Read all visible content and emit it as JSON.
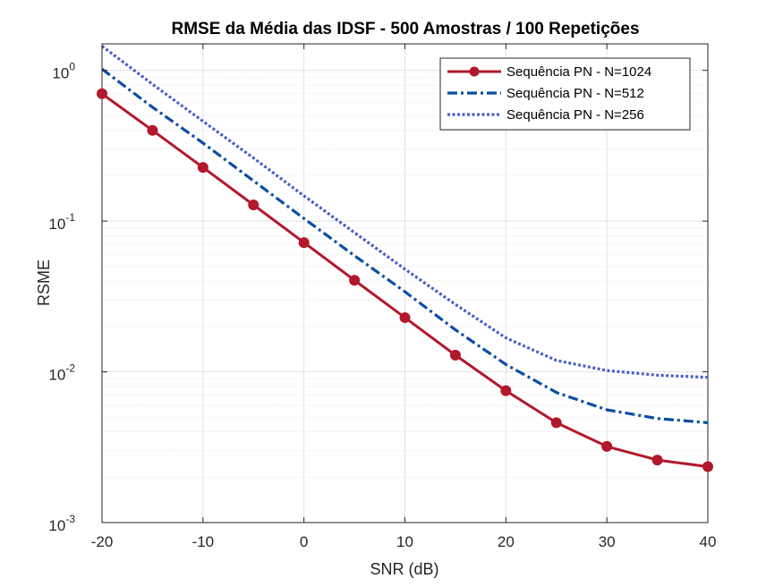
{
  "chart_data": {
    "type": "line",
    "title": "RMSE da Média das IDSF - 500 Amostras / 100 Repetições",
    "xlabel": "SNR (dB)",
    "ylabel": "RSME",
    "xlim": [
      -20,
      40
    ],
    "ylim": [
      0.001,
      1.5
    ],
    "yscale": "log",
    "grid": true,
    "minor_grid": true,
    "legend_placement": "top-right",
    "x_ticks": [
      -20,
      -10,
      0,
      10,
      20,
      30,
      40
    ],
    "x_tick_labels": [
      "-20",
      "-10",
      "0",
      "10",
      "20",
      "30",
      "40"
    ],
    "y_ticks": [
      {
        "value": 1,
        "base": "10",
        "exp": "0"
      },
      {
        "value": 0.1,
        "base": "10",
        "exp": "-1"
      },
      {
        "value": 0.01,
        "base": "10",
        "exp": "-2"
      },
      {
        "value": 0.001,
        "base": "10",
        "exp": "-3"
      }
    ],
    "x": [
      -20,
      -15,
      -10,
      -5,
      0,
      5,
      10,
      15,
      20,
      25,
      30,
      35,
      40
    ],
    "series": [
      {
        "name": "Sequência PN - N=1024",
        "color": "#b2182b",
        "style": "solid-marker",
        "values": [
          0.7,
          0.4,
          0.227,
          0.128,
          0.072,
          0.0405,
          0.0229,
          0.0129,
          0.0075,
          0.0046,
          0.0032,
          0.0026,
          0.00235
        ]
      },
      {
        "name": "Sequência PN - N=512",
        "color": "#0b4ea2",
        "style": "dashdot",
        "values": [
          1.02,
          0.57,
          0.33,
          0.185,
          0.104,
          0.059,
          0.034,
          0.019,
          0.0112,
          0.0073,
          0.0056,
          0.0049,
          0.0046
        ]
      },
      {
        "name": "Sequência PN - N=256",
        "color": "#4a5fc6",
        "style": "dotted",
        "values": [
          1.45,
          0.81,
          0.46,
          0.262,
          0.147,
          0.084,
          0.048,
          0.028,
          0.0168,
          0.0119,
          0.0102,
          0.0095,
          0.0092
        ]
      }
    ]
  }
}
